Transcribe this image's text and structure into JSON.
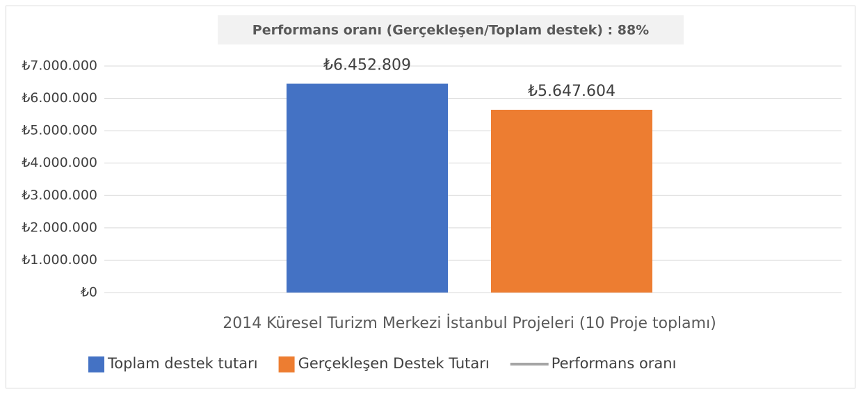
{
  "chart_data": {
    "type": "bar",
    "title": "Performans oranı (Gerçekleşen/Toplam destek) : 88%",
    "categories": [
      "2014 Küresel Turizm Merkezi İstanbul Projeleri (10 Proje toplamı)"
    ],
    "series": [
      {
        "name": "Toplam destek tutarı",
        "color": "#4472c4",
        "values": [
          6452809
        ],
        "value_labels": [
          "₺6.452.809"
        ]
      },
      {
        "name": "Gerçekleşen Destek Tutarı",
        "color": "#ed7d31",
        "values": [
          5647604
        ],
        "value_labels": [
          "₺5.647.604"
        ]
      },
      {
        "name": "Performans oranı",
        "type": "line",
        "color": "#a5a5a5",
        "values": [
          null
        ]
      }
    ],
    "ylim": [
      0,
      7000000
    ],
    "yticks": [
      {
        "value": 0,
        "label": "₺0"
      },
      {
        "value": 1000000,
        "label": "₺1.000.000"
      },
      {
        "value": 2000000,
        "label": "₺2.000.000"
      },
      {
        "value": 3000000,
        "label": "₺3.000.000"
      },
      {
        "value": 4000000,
        "label": "₺4.000.000"
      },
      {
        "value": 5000000,
        "label": "₺5.000.000"
      },
      {
        "value": 6000000,
        "label": "₺6.000.000"
      },
      {
        "value": 7000000,
        "label": "₺7.000.000"
      }
    ],
    "grid": true,
    "legend": "bottom"
  }
}
